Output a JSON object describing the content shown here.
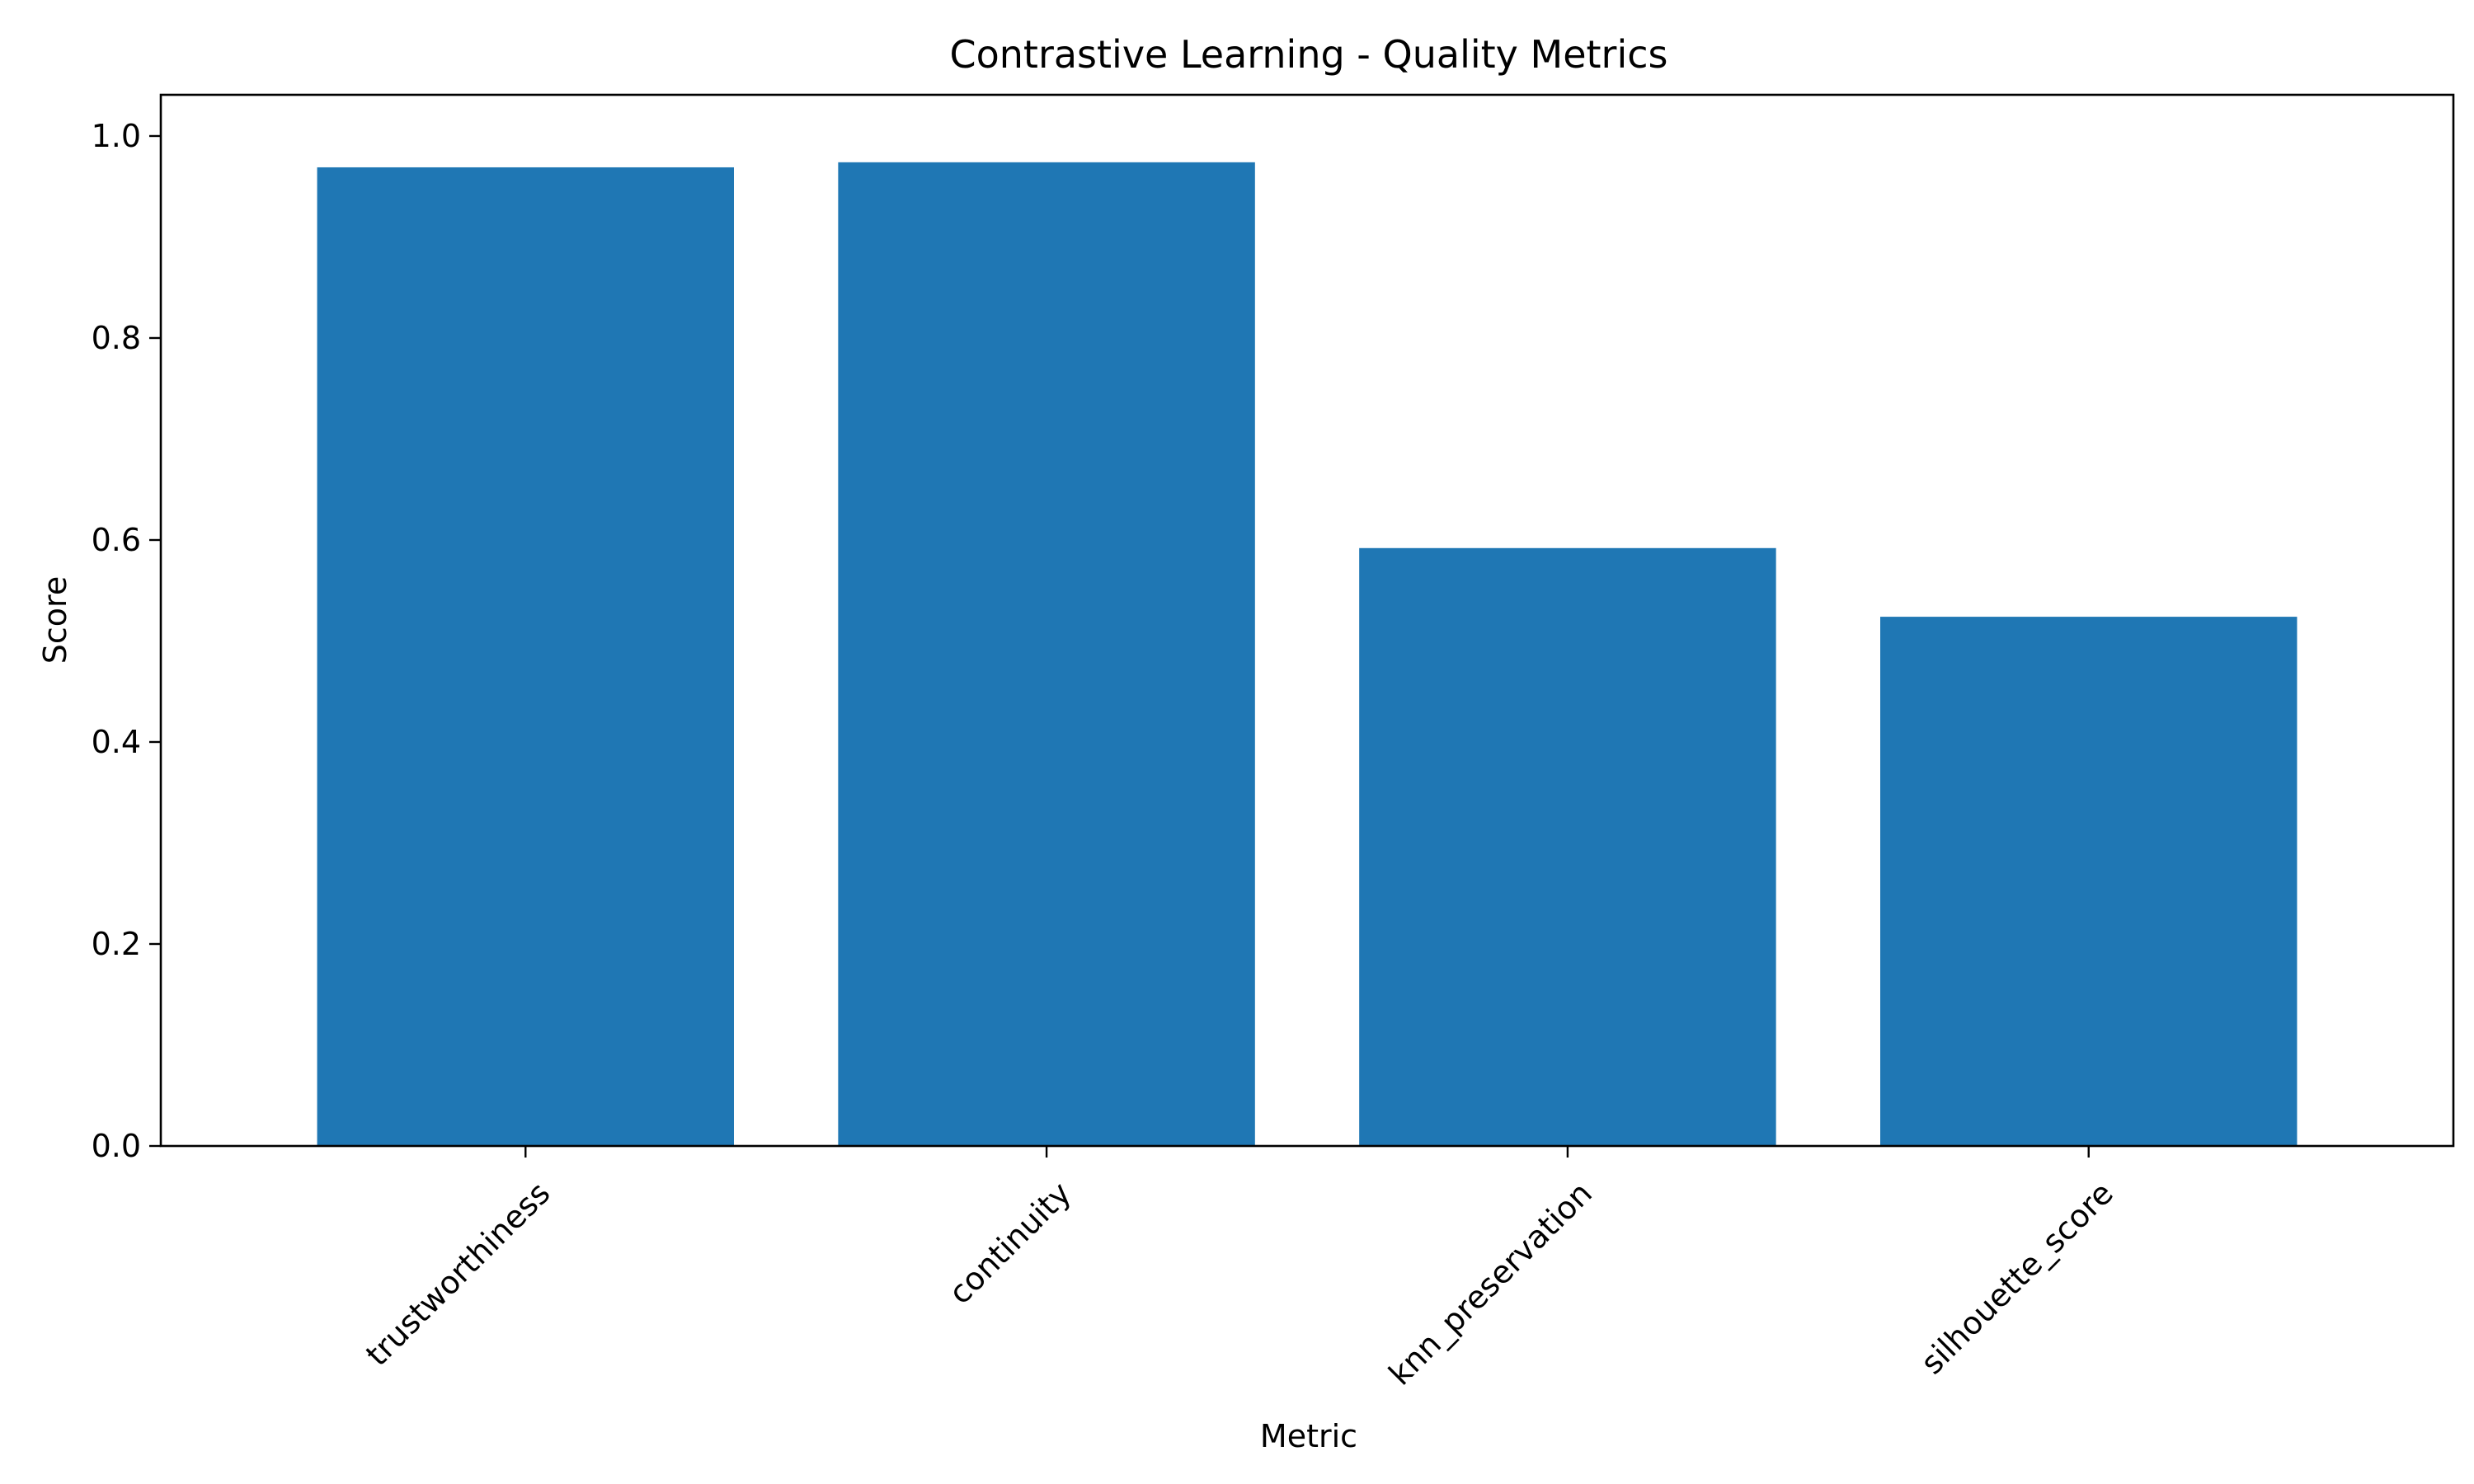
{
  "chart_data": {
    "type": "bar",
    "title": "Contrastive Learning - Quality Metrics",
    "xlabel": "Metric",
    "ylabel": "Score",
    "categories": [
      "trustworthiness",
      "continuity",
      "knn_preservation",
      "silhouette_score"
    ],
    "values": [
      0.969,
      0.974,
      0.592,
      0.524
    ],
    "ylim": [
      0,
      1.0
    ],
    "yticks": [
      "0.0",
      "0.2",
      "0.4",
      "0.6",
      "0.8",
      "1.0"
    ],
    "grid": false,
    "bar_color": "#1f77b4"
  }
}
